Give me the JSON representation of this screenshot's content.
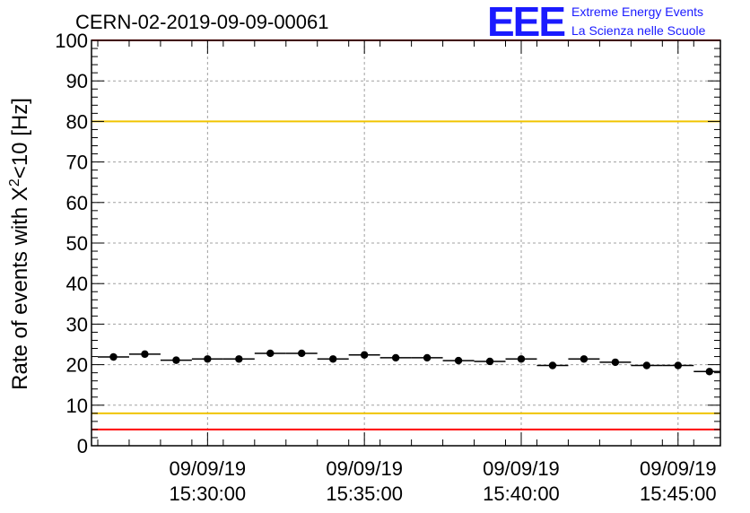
{
  "chart_data": {
    "type": "scatter",
    "title": "CERN-02-2019-09-09-00061",
    "ylabel_main": "Rate of events with X",
    "ylabel_sup": "2",
    "ylabel_tail": "<10 [Hz]",
    "xlabel": "",
    "ylim": [
      0,
      100
    ],
    "y_ticks": [
      0,
      10,
      20,
      30,
      40,
      50,
      60,
      70,
      80,
      90,
      100
    ],
    "x_unit": "minutes after 09/09/19 15:25:00",
    "xlim": [
      -1.2,
      18.85
    ],
    "x_ticks": [
      {
        "x": 2.5,
        "date": "09/09/19",
        "time": "15:30:00"
      },
      {
        "x": 7.5,
        "date": "09/09/19",
        "time": "15:35:00"
      },
      {
        "x": 12.5,
        "date": "09/09/19",
        "time": "15:40:00"
      },
      {
        "x": 17.5,
        "date": "09/09/19",
        "time": "15:45:00"
      }
    ],
    "bin_width": 1.0,
    "x": [
      -0.5,
      0.5,
      1.5,
      2.5,
      3.5,
      4.5,
      5.5,
      6.5,
      7.5,
      8.5,
      9.5,
      10.5,
      11.5,
      12.5,
      13.5,
      14.5,
      15.5,
      16.5,
      17.5,
      18.5
    ],
    "y": [
      21.9,
      22.6,
      21.1,
      21.4,
      21.4,
      22.8,
      22.8,
      21.4,
      22.4,
      21.7,
      21.7,
      21.0,
      20.8,
      21.4,
      19.8,
      21.4,
      20.6,
      19.8,
      19.8,
      18.3
    ],
    "reference_lines": [
      {
        "y": 80,
        "color": "#f0c400"
      },
      {
        "y": 8,
        "color": "#f0c400"
      },
      {
        "y": 4,
        "color": "#ff0000"
      },
      {
        "y": 100,
        "color": "#ff0000"
      }
    ],
    "grid": true,
    "marker_color": "#000000"
  },
  "logo": {
    "letters": "EEE",
    "line1": "Extreme Energy Events",
    "line2": "La Scienza nelle Scuole",
    "color": "#1a1aff"
  }
}
